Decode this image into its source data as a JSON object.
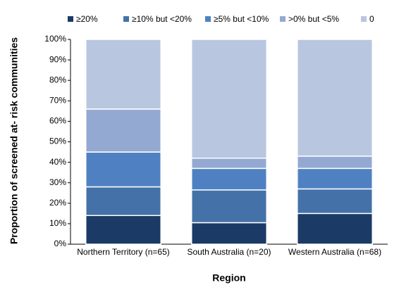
{
  "chart_data": {
    "type": "stacked_bar",
    "y_label": "Proportion of screened at- risk communities",
    "x_label": "Region",
    "categories": [
      "Northern Territory (n=65)",
      "South Australia (n=20)",
      "Western Australia (n=68)"
    ],
    "series": [
      {
        "name": "≥20%",
        "color": "#1b3a66",
        "values": [
          14,
          10.5,
          15
        ]
      },
      {
        "name": "≥10% but <20%",
        "color": "#4472a8",
        "values": [
          14,
          16,
          12
        ]
      },
      {
        "name": "≥5% but <10%",
        "color": "#4f81c2",
        "values": [
          17,
          10.5,
          10
        ]
      },
      {
        "name": ">0% but <5%",
        "color": "#94a9d2",
        "values": [
          21,
          5,
          6
        ]
      },
      {
        "name": "0",
        "color": "#b9c6e0",
        "values": [
          34,
          58,
          57
        ]
      }
    ],
    "ylim": [
      0,
      100
    ],
    "yticks": [
      {
        "value": 0,
        "label": "0%"
      },
      {
        "value": 10,
        "label": "10%"
      },
      {
        "value": 20,
        "label": "20%"
      },
      {
        "value": 30,
        "label": "30%"
      },
      {
        "value": 40,
        "label": "40%"
      },
      {
        "value": 50,
        "label": "50%"
      },
      {
        "value": 60,
        "label": "60%"
      },
      {
        "value": 70,
        "label": "70%"
      },
      {
        "value": 80,
        "label": "80%"
      },
      {
        "value": 90,
        "label": "90%"
      },
      {
        "value": 100,
        "label": "100%"
      }
    ],
    "legend": "top"
  }
}
